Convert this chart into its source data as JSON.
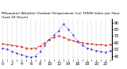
{
  "title": "Milwaukee Weather Outdoor Temperature (vs) THSW Index per Hour (Last 24 Hours)",
  "hours": [
    0,
    1,
    2,
    3,
    4,
    5,
    6,
    7,
    8,
    9,
    10,
    11,
    12,
    13,
    14,
    15,
    16,
    17,
    18,
    19,
    20,
    21,
    22,
    23
  ],
  "temp": [
    58,
    57,
    56,
    55,
    54,
    52,
    51,
    52,
    55,
    60,
    65,
    68,
    70,
    68,
    65,
    63,
    61,
    60,
    59,
    58,
    57,
    57,
    56,
    57
  ],
  "thsw": [
    52,
    50,
    47,
    44,
    42,
    40,
    38,
    40,
    47,
    56,
    65,
    72,
    78,
    88,
    80,
    72,
    62,
    56,
    52,
    50,
    48,
    47,
    46,
    48
  ],
  "temp_color": "#cc0000",
  "thsw_color": "#0000cc",
  "bg_color": "#ffffff",
  "grid_color": "#888888",
  "ylim_min": 35,
  "ylim_max": 95,
  "ytick_values": [
    40,
    50,
    60,
    70,
    80,
    90
  ],
  "ytick_labels": [
    "40",
    "50",
    "60",
    "70",
    "80",
    "90"
  ],
  "title_fontsize": 3.2,
  "tick_fontsize": 3.5
}
